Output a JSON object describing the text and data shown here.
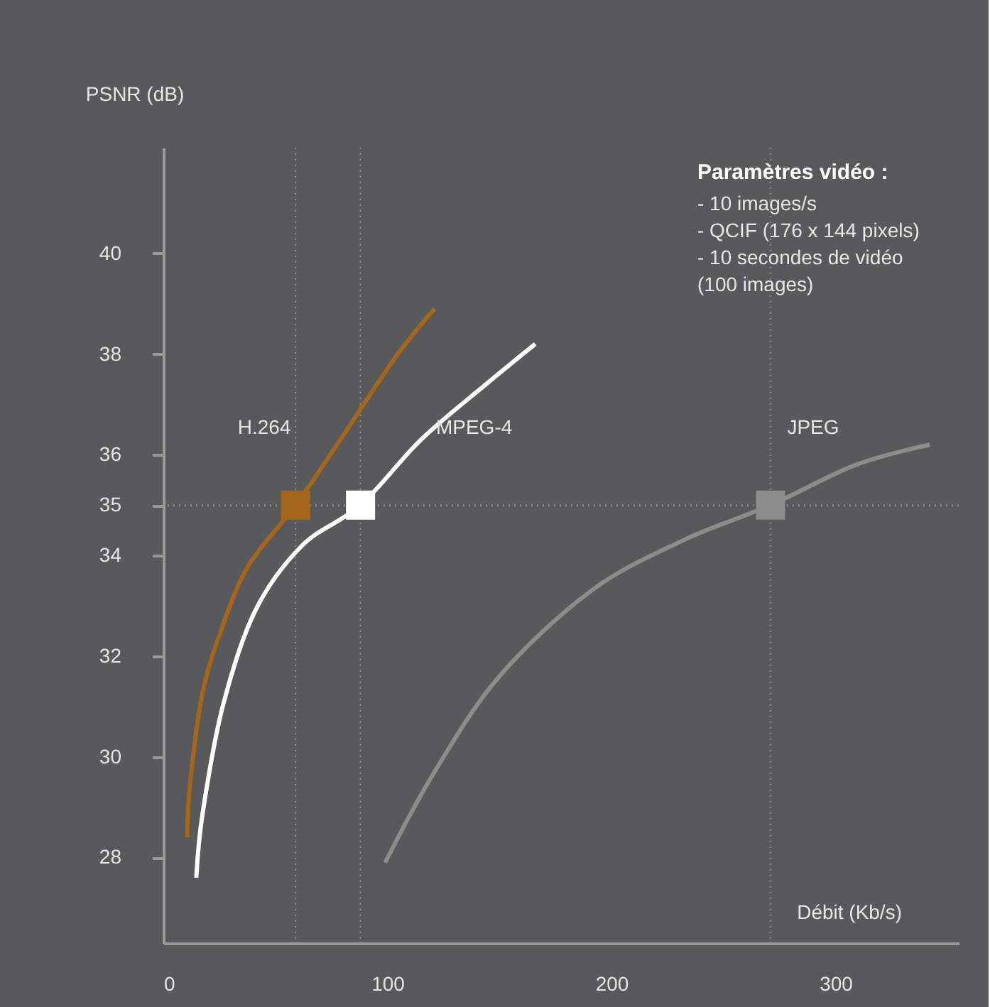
{
  "chart_data": {
    "type": "line",
    "xlabel": "Débit (Kb/s)",
    "ylabel": "PSNR (dB)",
    "xlim": [
      0,
      355
    ],
    "ylim": [
      26.3,
      42.1
    ],
    "xticks": [
      0,
      100,
      200,
      300
    ],
    "yticks": [
      28,
      30,
      32,
      34,
      35,
      36,
      38,
      40
    ],
    "grid": false,
    "legend": false,
    "line_style": "solid",
    "series": [
      {
        "name": "H.264",
        "color": "#a5661b",
        "x": [
          10.6,
          12,
          17.6,
          26.5,
          38,
          59,
          79,
          103,
          121
        ],
        "values": [
          28.4,
          29.5,
          31.3,
          32.6,
          33.8,
          35,
          36.3,
          37.9,
          38.9
        ]
      },
      {
        "name": "MPEG-4",
        "color": "#ffffff",
        "x": [
          14.7,
          17.6,
          26.5,
          41,
          62,
          88,
          115,
          144,
          166
        ],
        "values": [
          27.6,
          28.9,
          31.0,
          32.9,
          34.2,
          35,
          36.3,
          37.4,
          38.2
        ]
      },
      {
        "name": "JPEG",
        "color": "#8c8c8c",
        "x": [
          99,
          121,
          150,
          191,
          232,
          271,
          309,
          342
        ],
        "values": [
          27.9,
          29.7,
          31.6,
          33.3,
          34.3,
          35,
          35.8,
          36.2
        ]
      },
      {
        "type": "scatter",
        "marker": "square",
        "colors": [
          "#a5661b",
          "#ffffff",
          "#8c8c8c"
        ],
        "x": [
          59,
          88,
          271
        ],
        "values": [
          35,
          35,
          35
        ]
      }
    ],
    "ref_lines": [
      {
        "axis": "y",
        "value": 35,
        "line_style": "dotted",
        "color": "#8c8c8c"
      },
      {
        "axis": "x",
        "value": 59,
        "line_style": "dotted",
        "color": "#8c8c8c"
      },
      {
        "axis": "x",
        "value": 88,
        "line_style": "dotted",
        "color": "#8c8c8c"
      },
      {
        "axis": "x",
        "value": 271,
        "line_style": "dotted",
        "color": "#8c8c8c"
      }
    ],
    "annotations": [
      "Paramètres vidéo :",
      "- 10 images/s",
      "- QCIF (176 x 144 pixels)",
      "- 10 secondes de vidéo",
      "  (100 images)"
    ]
  }
}
